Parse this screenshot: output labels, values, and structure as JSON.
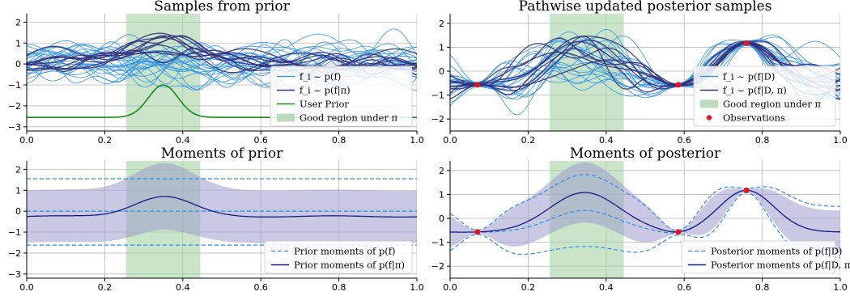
{
  "colors": {
    "sample_prior": "#2c8fe8",
    "sample_user": "#32327a",
    "user_prior": "#1a8a1a",
    "good_region": "#9fcf9f",
    "observation": "#ee1111",
    "moment_prior_line": "#2c8fe8",
    "moment_user_line": "#1a1a8a",
    "moment_band": "#9c9ccc"
  },
  "chart_data": [
    {
      "type": "line",
      "title": "Samples from prior",
      "xlim": [
        0,
        1.0
      ],
      "ylim": [
        -3.2,
        2.4
      ],
      "xticks": [
        "0.0",
        "0.2",
        "0.4",
        "0.6",
        "0.8",
        "1.0"
      ],
      "yticks": [
        "-3",
        "-2",
        "-1",
        "0",
        "1",
        "2"
      ],
      "good_region": [
        0.255,
        0.445
      ],
      "user_prior": {
        "baseline": -2.55,
        "peak": -1.0,
        "center": 0.35,
        "width": 0.038
      },
      "legend": [
        "f_i ~ p(f)",
        "f_i ~ p(f|π)",
        "User Prior",
        "Good region under π"
      ],
      "legend_position": "lower-right"
    },
    {
      "type": "line",
      "title": "Pathwise updated posterior samples",
      "xlim": [
        0,
        1.0
      ],
      "ylim": [
        -2.5,
        2.4
      ],
      "xticks": [
        "0.0",
        "0.2",
        "0.4",
        "0.6",
        "0.8",
        "1.0"
      ],
      "yticks": [
        "-2",
        "-1",
        "0",
        "1",
        "2"
      ],
      "good_region": [
        0.255,
        0.445
      ],
      "observations": [
        {
          "x": 0.07,
          "y": -0.57
        },
        {
          "x": 0.585,
          "y": -0.57
        },
        {
          "x": 0.76,
          "y": 1.17
        }
      ],
      "legend": [
        "f_i ~ p(f|D)",
        "f_i ~ p(f|D, π)",
        "Good region under π",
        "Observations"
      ],
      "legend_position": "lower-right"
    },
    {
      "type": "area",
      "title": "Moments of prior",
      "xlim": [
        0,
        1.0
      ],
      "ylim": [
        -3.2,
        2.4
      ],
      "xticks": [
        "0.0",
        "0.2",
        "0.4",
        "0.6",
        "0.8",
        "1.0"
      ],
      "yticks": [
        "-3",
        "-2",
        "-1",
        "0",
        "1",
        "2"
      ],
      "good_region": [
        0.255,
        0.445
      ],
      "prior_mean": 0.0,
      "prior_upper": 1.55,
      "prior_lower": -1.62,
      "legend": [
        "Prior moments of p(f)",
        "Prior moments of p(f|π)"
      ],
      "legend_position": "lower-right"
    },
    {
      "type": "area",
      "title": "Moments of posterior",
      "xlim": [
        0,
        1.0
      ],
      "ylim": [
        -2.5,
        2.4
      ],
      "xticks": [
        "0.0",
        "0.2",
        "0.4",
        "0.6",
        "0.8",
        "1.0"
      ],
      "yticks": [
        "-2",
        "-1",
        "0",
        "1",
        "2"
      ],
      "good_region": [
        0.255,
        0.445
      ],
      "observations": [
        {
          "x": 0.07,
          "y": -0.57
        },
        {
          "x": 0.585,
          "y": -0.57
        },
        {
          "x": 0.76,
          "y": 1.17
        }
      ],
      "legend": [
        "Posterior moments of p(f|D)",
        "Posterior moments of p(f|D, π)"
      ],
      "legend_position": "lower-right"
    }
  ]
}
